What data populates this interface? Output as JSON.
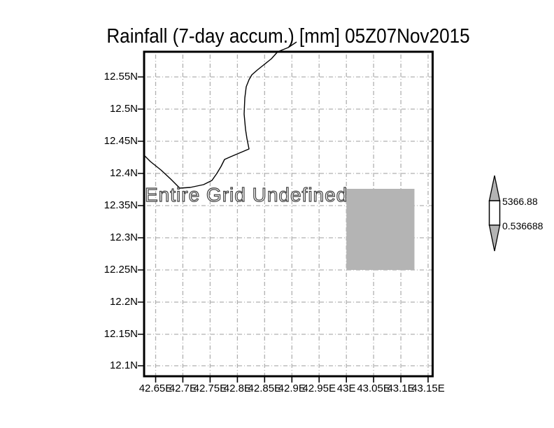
{
  "title": "Rainfall (7-day accum.) [mm] 05Z07Nov2015",
  "plot": {
    "undefined_notice": "Entire Grid Undefined",
    "y_axis": {
      "labels": [
        "12.55N",
        "12.5N",
        "12.45N",
        "12.4N",
        "12.35N",
        "12.3N",
        "12.25N",
        "12.2N",
        "12.15N",
        "12.1N"
      ]
    },
    "x_axis": {
      "labels": [
        "42.65E",
        "42.7E",
        "42.75E",
        "42.8E",
        "42.85E",
        "42.9E",
        "42.95E",
        "43E",
        "43.05E",
        "43.1E",
        "43.15E"
      ]
    }
  },
  "colorbar": {
    "max_label": "5366.88",
    "min_label": "0.536688"
  },
  "colors": {
    "background": "#ffffff",
    "shade_gray": "#b4b4b4",
    "grid_gray": "#b0b0b0",
    "line_black": "#000000"
  },
  "chart_data": {
    "type": "heatmap",
    "title": "Rainfall (7-day accum.) [mm] 05Z07Nov2015",
    "valid_time": "05Z07Nov2015",
    "variable": "Rainfall (7-day accumulation)",
    "units": "mm",
    "x_ticks": [
      42.65,
      42.7,
      42.75,
      42.8,
      42.85,
      42.9,
      42.95,
      43.0,
      43.05,
      43.1,
      43.15
    ],
    "y_ticks": [
      12.1,
      12.15,
      12.2,
      12.25,
      12.3,
      12.35,
      12.4,
      12.45,
      12.5,
      12.55
    ],
    "x_tick_labels": [
      "42.65E",
      "42.7E",
      "42.75E",
      "42.8E",
      "42.85E",
      "42.9E",
      "42.95E",
      "43E",
      "43.05E",
      "43.1E",
      "43.15E"
    ],
    "y_tick_labels": [
      "12.1N",
      "12.15N",
      "12.2N",
      "12.25N",
      "12.3N",
      "12.35N",
      "12.4N",
      "12.45N",
      "12.5N",
      "12.55N"
    ],
    "xlim": [
      42.63,
      43.16
    ],
    "ylim": [
      12.08,
      12.59
    ],
    "grid": true,
    "grid_style": "gray dot-dash",
    "series": [],
    "annotations": [
      "Entire Grid Undefined"
    ],
    "colorbar": {
      "min": 0.536688,
      "max": 5366.88,
      "orientation": "vertical-arrows",
      "position": "right"
    },
    "undefined_region": {
      "lon": [
        43.0,
        43.125
      ],
      "lat": [
        12.25,
        12.375
      ],
      "fill": "gray (missing data block)"
    },
    "features": [
      "coastline through upper-left of map"
    ]
  }
}
